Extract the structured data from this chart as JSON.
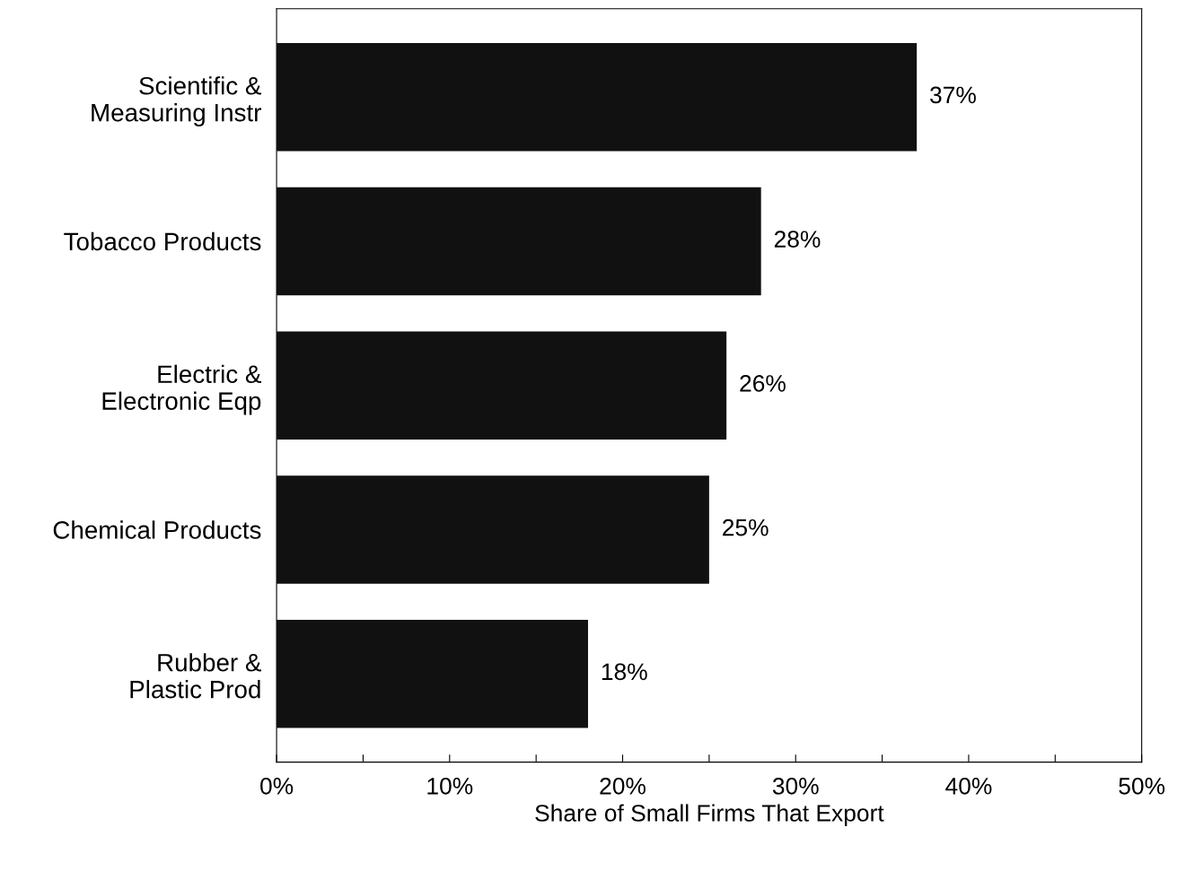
{
  "chart_data": {
    "type": "bar",
    "orientation": "horizontal",
    "xlabel": "Share of Small Firms That Export",
    "categories": [
      "Scientific &\nMeasuring Instr",
      "Tobacco Products",
      "Electric &\nElectronic Eqp",
      "Chemical Products",
      "Rubber &\nPlastic Prod"
    ],
    "values": [
      37,
      28,
      26,
      25,
      18
    ],
    "color": "#111111",
    "data_labels": true,
    "value_labels": [
      "37%",
      "28%",
      "26%",
      "25%",
      "18%"
    ],
    "xlim": [
      0,
      50
    ],
    "xticks": [
      {
        "value": 0,
        "label": "0%"
      },
      {
        "value": 5,
        "label": null
      },
      {
        "value": 10,
        "label": "10%"
      },
      {
        "value": 15,
        "label": null
      },
      {
        "value": 20,
        "label": "20%"
      },
      {
        "value": 25,
        "label": null
      },
      {
        "value": 30,
        "label": "30%"
      },
      {
        "value": 35,
        "label": null
      },
      {
        "value": 40,
        "label": "40%"
      },
      {
        "value": 45,
        "label": null
      },
      {
        "value": 50,
        "label": "50%"
      }
    ],
    "grid": false,
    "legend": false
  }
}
